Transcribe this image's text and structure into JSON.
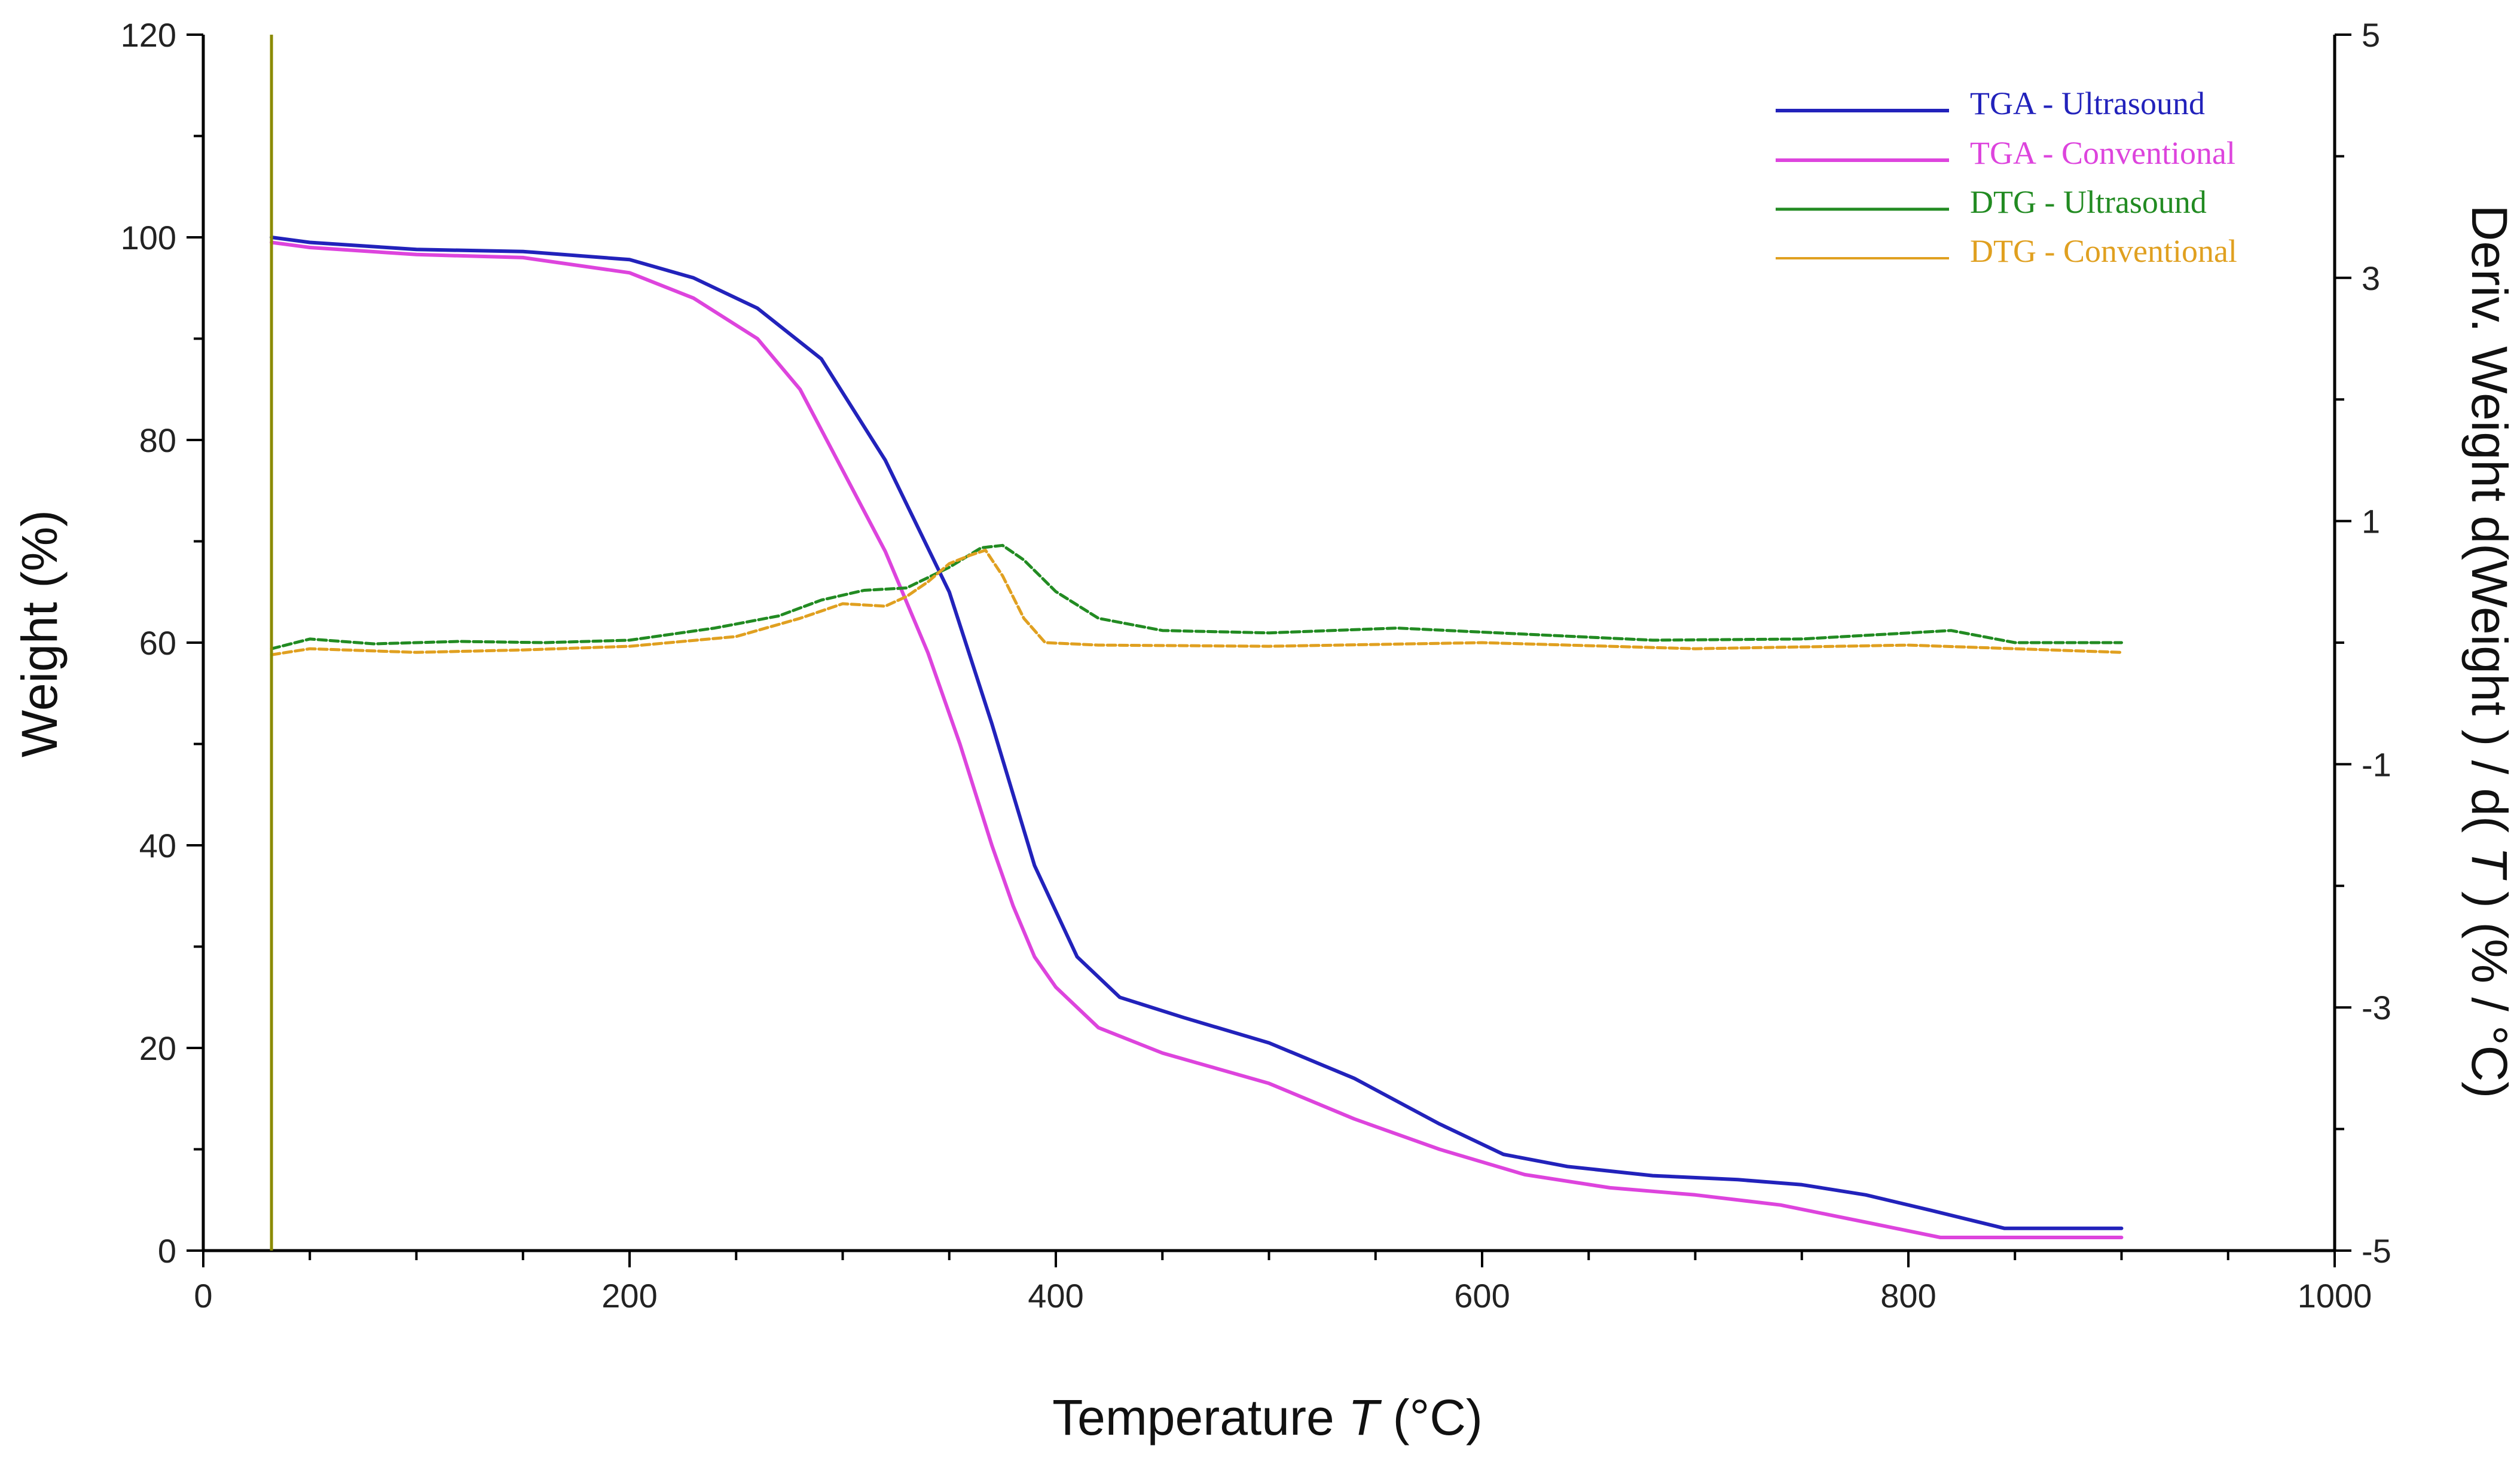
{
  "chart_data": {
    "type": "line",
    "x_axis": {
      "label_prefix": "Temperature ",
      "label_var": "T",
      "label_suffix": " (°C)",
      "lim": [
        0,
        1000
      ],
      "ticks": [
        0,
        200,
        400,
        600,
        800,
        1000
      ],
      "tick_labels": [
        "0",
        "200",
        "400",
        "600",
        "800",
        "1000"
      ]
    },
    "y_axis_left": {
      "label": "Weight  (%)",
      "lim": [
        0,
        120
      ],
      "ticks": [
        0,
        20,
        40,
        60,
        80,
        100,
        120
      ],
      "tick_labels": [
        "0",
        "20",
        "40",
        "60",
        "80",
        "100",
        "120"
      ]
    },
    "y_axis_right": {
      "label_prefix": "Deriv. Weight d(Weight ) / d( ",
      "label_var": "T",
      "label_suffix": " )  (% / °C)",
      "lim": [
        -5,
        5
      ],
      "ticks": [
        -5,
        -3,
        -1,
        1,
        3,
        5
      ],
      "tick_labels": [
        "-5",
        "-3",
        "-1",
        "1",
        "3",
        "5"
      ]
    },
    "series": [
      {
        "name": "TGA - Ultrasound",
        "axis": "left",
        "color": "#2222bb",
        "dashed": false,
        "x": [
          32,
          50,
          100,
          150,
          200,
          230,
          260,
          290,
          320,
          350,
          370,
          390,
          410,
          430,
          460,
          500,
          540,
          580,
          610,
          640,
          680,
          720,
          750,
          780,
          810,
          845,
          900
        ],
        "y": [
          100,
          99.5,
          98.8,
          98.6,
          97.8,
          96,
          93,
          88,
          78,
          65,
          52,
          38,
          29,
          25,
          23,
          20.5,
          17,
          12.5,
          9.5,
          8.3,
          7.4,
          7,
          6.5,
          5.5,
          4,
          2.2,
          2.2
        ]
      },
      {
        "name": "TGA - Conventional",
        "axis": "left",
        "color": "#dd44dd",
        "dashed": false,
        "x": [
          32,
          50,
          100,
          150,
          200,
          230,
          260,
          280,
          300,
          320,
          340,
          355,
          370,
          380,
          390,
          400,
          420,
          450,
          500,
          540,
          580,
          620,
          660,
          700,
          740,
          780,
          815,
          900
        ],
        "y": [
          99.5,
          99,
          98.3,
          98,
          96.5,
          94,
          90,
          85,
          77,
          69,
          59,
          50,
          40,
          34,
          29,
          26,
          22,
          19.5,
          16.5,
          13,
          10,
          7.5,
          6.2,
          5.5,
          4.5,
          2.8,
          1.3,
          1.3
        ]
      },
      {
        "name": "DTG - Ultrasound",
        "axis": "right",
        "color": "#228b22",
        "dashed": true,
        "x": [
          32,
          50,
          80,
          120,
          160,
          200,
          240,
          270,
          290,
          310,
          330,
          350,
          365,
          375,
          385,
          400,
          420,
          450,
          500,
          560,
          620,
          680,
          750,
          820,
          850,
          900
        ],
        "y": [
          -0.05,
          0.03,
          -0.01,
          0.01,
          0.0,
          0.02,
          0.12,
          0.22,
          0.35,
          0.43,
          0.45,
          0.62,
          0.78,
          0.8,
          0.68,
          0.42,
          0.2,
          0.1,
          0.08,
          0.12,
          0.07,
          0.02,
          0.03,
          0.1,
          0.0,
          0.0
        ]
      },
      {
        "name": "DTG - Conventional",
        "axis": "right",
        "color": "#e0a020",
        "dashed": true,
        "x": [
          32,
          50,
          100,
          150,
          200,
          250,
          280,
          300,
          320,
          330,
          340,
          350,
          360,
          367,
          375,
          385,
          395,
          420,
          500,
          600,
          700,
          800,
          900
        ],
        "y": [
          -0.1,
          -0.05,
          -0.08,
          -0.06,
          -0.03,
          0.05,
          0.2,
          0.32,
          0.3,
          0.38,
          0.5,
          0.65,
          0.72,
          0.76,
          0.55,
          0.2,
          0.0,
          -0.02,
          -0.03,
          0.0,
          -0.05,
          -0.02,
          -0.08
        ]
      }
    ],
    "vertical_marker_x": 32
  }
}
